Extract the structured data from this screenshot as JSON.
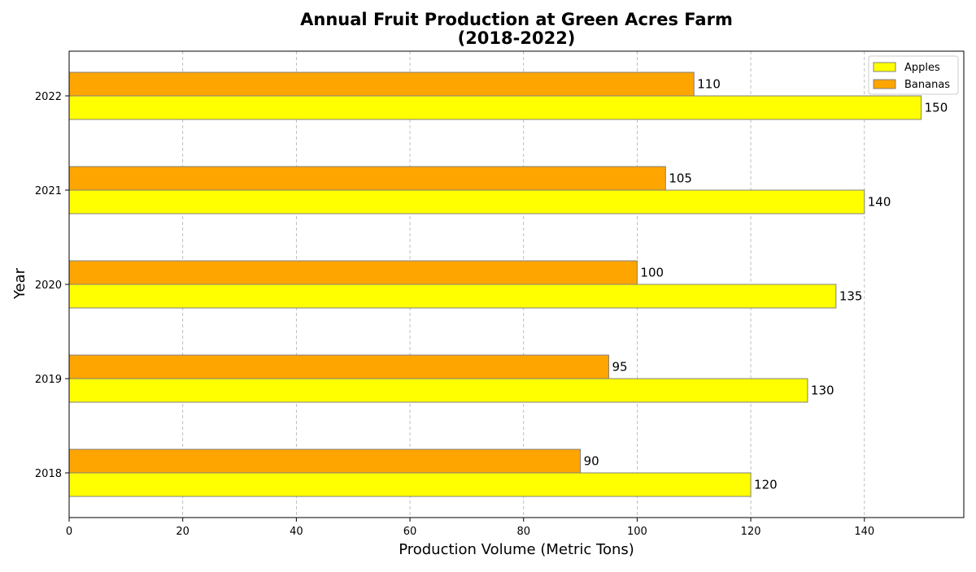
{
  "chart_data": {
    "type": "bar",
    "orientation": "horizontal",
    "title_lines": [
      "Annual Fruit Production at Green Acres Farm",
      "(2018-2022)"
    ],
    "xlabel": "Production Volume (Metric Tons)",
    "ylabel": "Year",
    "categories": [
      "2018",
      "2019",
      "2020",
      "2021",
      "2022"
    ],
    "series": [
      {
        "name": "Apples",
        "values": [
          120,
          130,
          135,
          140,
          150
        ],
        "color": "#ffff00"
      },
      {
        "name": "Bananas",
        "values": [
          90,
          95,
          100,
          105,
          110
        ],
        "color": "#ffa500"
      }
    ],
    "bar_edge_color": "#808080",
    "xlim": [
      0,
      157.5
    ],
    "xticks": [
      0,
      20,
      40,
      60,
      80,
      100,
      120,
      140
    ],
    "grid": {
      "x": true,
      "y": false,
      "style": "dashed"
    },
    "legend_position": "top-right"
  }
}
